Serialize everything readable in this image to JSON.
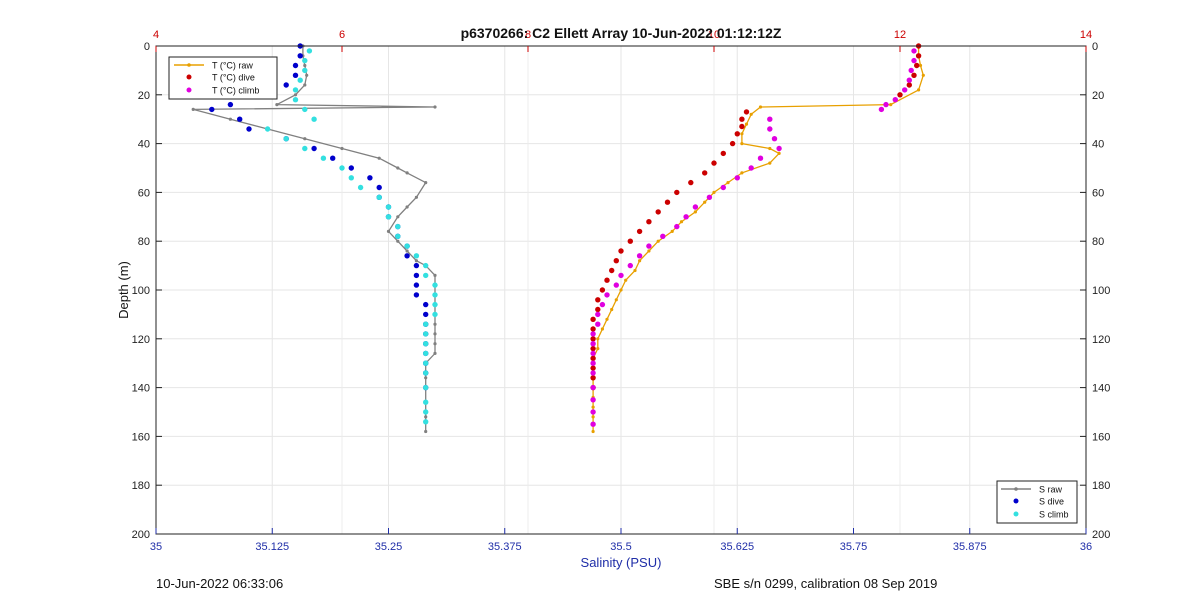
{
  "chart_data": {
    "type": "scatter",
    "title": "p6370266: C2 Ellett Array 10-Jun-2022 01:12:12Z",
    "ylabel": "Depth (m)",
    "xlabel_bottom": "Salinity (PSU)",
    "ylim": [
      0,
      200
    ],
    "y_reversed": true,
    "xlim_bottom": [
      35,
      36
    ],
    "xlim_top": [
      4,
      14
    ],
    "y_ticks": [
      "0",
      "20",
      "40",
      "60",
      "80",
      "100",
      "120",
      "140",
      "160",
      "180",
      "200"
    ],
    "x_ticks_bottom": [
      "35",
      "35.125",
      "35.25",
      "35.375",
      "35.5",
      "35.625",
      "35.75",
      "35.875",
      "36"
    ],
    "x_ticks_top": [
      "4",
      "6",
      "8",
      "10",
      "12",
      "14"
    ],
    "grid": true,
    "legend_top_left": [
      "T (°C) raw",
      "T (°C) dive",
      "T (°C) climb"
    ],
    "legend_bottom_right": [
      "S raw",
      "S dive",
      "S climb"
    ],
    "colors": {
      "t_raw": "#e8a000",
      "t_dive": "#cc0000",
      "t_climb": "#e000e0",
      "s_raw": "#808080",
      "s_dive": "#0000cc",
      "s_climb": "#33e0e0",
      "bottom_axis": "#1f2ea8",
      "top_axis": "#cc0000"
    },
    "series": [
      {
        "name": "T (°C) raw",
        "axis": "top",
        "x": [
          12.2,
          12.2,
          12.22,
          12.25,
          12.2,
          11.9,
          10.5,
          10.4,
          10.35,
          10.3,
          10.3,
          10.6,
          10.7,
          10.6,
          10.3,
          10.15,
          10.0,
          9.9,
          9.8,
          9.65,
          9.55,
          9.4,
          9.3,
          9.2,
          9.15,
          9.05,
          9.0,
          8.95,
          8.9,
          8.85,
          8.8,
          8.75,
          8.75,
          8.7,
          8.7,
          8.7,
          8.7,
          8.7,
          8.7,
          8.7,
          8.7
        ],
        "y": [
          0,
          4,
          8,
          12,
          18,
          24,
          25,
          28,
          32,
          36,
          40,
          42,
          44,
          48,
          52,
          56,
          60,
          64,
          68,
          72,
          76,
          80,
          84,
          88,
          92,
          96,
          100,
          104,
          108,
          112,
          116,
          120,
          124,
          128,
          132,
          136,
          140,
          144,
          148,
          152,
          158
        ]
      },
      {
        "name": "T (°C) dive",
        "axis": "top",
        "x": [
          12.2,
          12.2,
          12.18,
          12.15,
          12.1,
          12.0,
          10.35,
          10.3,
          10.3,
          10.25,
          10.2,
          10.1,
          10.0,
          9.9,
          9.75,
          9.6,
          9.5,
          9.4,
          9.3,
          9.2,
          9.1,
          9.0,
          8.95,
          8.9,
          8.85,
          8.8,
          8.75,
          8.75,
          8.7,
          8.7,
          8.7,
          8.7,
          8.7,
          8.7,
          8.7,
          8.7
        ],
        "y": [
          0,
          4,
          8,
          12,
          16,
          20,
          27,
          30,
          33,
          36,
          40,
          44,
          48,
          52,
          56,
          60,
          64,
          68,
          72,
          76,
          80,
          84,
          88,
          92,
          96,
          100,
          104,
          108,
          112,
          116,
          120,
          124,
          128,
          132,
          136,
          140
        ]
      },
      {
        "name": "T (°C) climb",
        "axis": "top",
        "x": [
          12.15,
          12.15,
          12.12,
          12.1,
          12.05,
          11.95,
          11.85,
          11.8,
          10.6,
          10.6,
          10.65,
          10.7,
          10.5,
          10.4,
          10.25,
          10.1,
          9.95,
          9.8,
          9.7,
          9.6,
          9.45,
          9.3,
          9.2,
          9.1,
          9.0,
          8.95,
          8.85,
          8.8,
          8.75,
          8.75,
          8.7,
          8.7,
          8.7,
          8.7,
          8.7,
          8.7,
          8.7,
          8.7,
          8.7
        ],
        "y": [
          2,
          6,
          10,
          14,
          18,
          22,
          24,
          26,
          30,
          34,
          38,
          42,
          46,
          50,
          54,
          58,
          62,
          66,
          70,
          74,
          78,
          82,
          86,
          90,
          94,
          98,
          102,
          106,
          110,
          114,
          118,
          122,
          126,
          130,
          134,
          140,
          145,
          150,
          155
        ]
      },
      {
        "name": "S raw",
        "axis": "bottom",
        "x": [
          35.158,
          35.158,
          35.16,
          35.162,
          35.16,
          35.15,
          35.13,
          35.3,
          35.04,
          35.08,
          35.12,
          35.16,
          35.2,
          35.24,
          35.26,
          35.27,
          35.29,
          35.28,
          35.27,
          35.26,
          35.25,
          35.26,
          35.27,
          35.28,
          35.29,
          35.3,
          35.3,
          35.3,
          35.3,
          35.3,
          35.3,
          35.3,
          35.3,
          35.3,
          35.29,
          35.29,
          35.29,
          35.29,
          35.29,
          35.29
        ],
        "y": [
          0,
          4,
          8,
          12,
          16,
          20,
          24,
          25,
          26,
          30,
          34,
          38,
          42,
          46,
          50,
          52,
          56,
          62,
          66,
          70,
          76,
          80,
          84,
          88,
          90,
          94,
          98,
          102,
          106,
          110,
          114,
          118,
          122,
          126,
          130,
          136,
          140,
          146,
          152,
          158
        ]
      },
      {
        "name": "S dive",
        "axis": "bottom",
        "x": [
          35.155,
          35.155,
          35.15,
          35.15,
          35.14,
          35.12,
          35.08,
          35.06,
          35.09,
          35.1,
          35.14,
          35.17,
          35.19,
          35.21,
          35.23,
          35.24,
          35.24,
          35.25,
          35.25,
          35.26,
          35.26,
          35.27,
          35.27,
          35.28,
          35.28,
          35.28,
          35.28,
          35.29,
          35.29,
          35.29,
          35.29,
          35.29,
          35.29,
          35.29,
          35.29,
          35.29
        ],
        "y": [
          0,
          4,
          8,
          12,
          16,
          20,
          24,
          26,
          30,
          34,
          38,
          42,
          46,
          50,
          54,
          58,
          62,
          66,
          70,
          74,
          78,
          82,
          86,
          90,
          94,
          98,
          102,
          106,
          110,
          114,
          118,
          122,
          126,
          130,
          134,
          140
        ]
      },
      {
        "name": "S climb",
        "axis": "bottom",
        "x": [
          35.165,
          35.16,
          35.16,
          35.155,
          35.15,
          35.15,
          35.16,
          35.17,
          35.12,
          35.14,
          35.16,
          35.18,
          35.2,
          35.21,
          35.22,
          35.24,
          35.25,
          35.25,
          35.26,
          35.26,
          35.27,
          35.28,
          35.29,
          35.29,
          35.3,
          35.3,
          35.3,
          35.3,
          35.29,
          35.29,
          35.29,
          35.29,
          35.29,
          35.29,
          35.29,
          35.29,
          35.29,
          35.29
        ],
        "y": [
          2,
          6,
          10,
          14,
          18,
          22,
          26,
          30,
          34,
          38,
          42,
          46,
          50,
          54,
          58,
          62,
          66,
          70,
          74,
          78,
          82,
          86,
          90,
          94,
          98,
          102,
          106,
          110,
          114,
          118,
          122,
          126,
          130,
          134,
          140,
          146,
          150,
          154
        ]
      }
    ]
  },
  "footer": {
    "left": "10-Jun-2022 06:33:06",
    "right": "SBE s/n 0299, calibration 08 Sep 2019"
  }
}
